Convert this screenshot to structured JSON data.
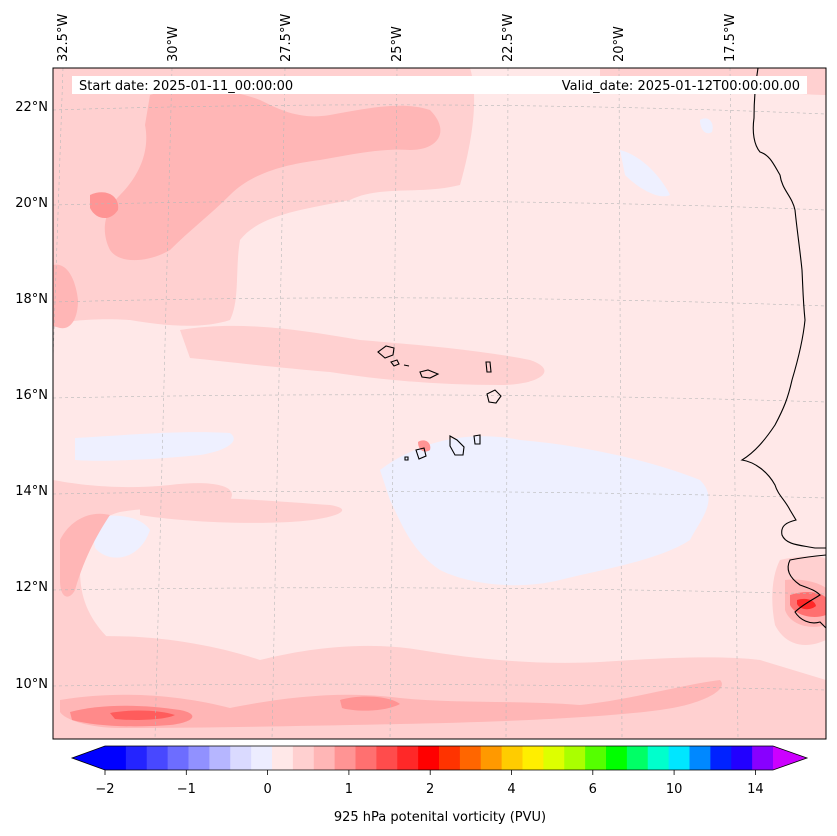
{
  "map": {
    "start_date": "Start date: 2025-01-11_00:00:00",
    "valid_date": "Valid_date: 2025-01-12T00:00:00.00",
    "lon_labels": [
      "32.5°W",
      "30°W",
      "27.5°W",
      "25°W",
      "22.5°W",
      "20°W",
      "17.5°W"
    ],
    "lat_labels": [
      "22°N",
      "20°N",
      "18°N",
      "16°N",
      "14°N",
      "12°N",
      "10°N"
    ]
  },
  "colorbar": {
    "label": "925 hPa potenital vorticity (PVU)",
    "tick_labels": [
      "−2",
      "−1",
      "0",
      "1",
      "2",
      "4",
      "6",
      "10",
      "14"
    ],
    "colors": [
      "#0000ff",
      "#2424ff",
      "#4848ff",
      "#6d6dff",
      "#9191ff",
      "#b6b6ff",
      "#dadaff",
      "#ededff",
      "#ffe8e8",
      "#ffd0d0",
      "#ffb6b6",
      "#ff9494",
      "#ff7070",
      "#ff4c4c",
      "#ff2828",
      "#ff0000",
      "#ff3300",
      "#ff6600",
      "#ff9900",
      "#ffcc00",
      "#ffee00",
      "#ddff00",
      "#aaff00",
      "#55ff00",
      "#00ff00",
      "#00ff66",
      "#00ffcc",
      "#00e6ff",
      "#0088ff",
      "#0022ff",
      "#2200ff",
      "#8800ff"
    ],
    "under_color": "#0000ff",
    "over_color": "#cc00ff"
  }
}
